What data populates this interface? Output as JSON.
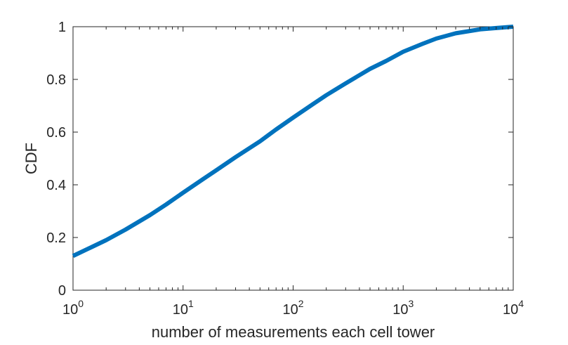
{
  "chart_data": {
    "type": "line",
    "title": "",
    "xlabel": "number of measurements each cell tower",
    "ylabel": "CDF",
    "xscale": "log",
    "xlim": [
      1,
      10000
    ],
    "ylim": [
      0,
      1
    ],
    "grid": false,
    "x_ticks": [
      {
        "base": "10",
        "exp": "0",
        "value": 1
      },
      {
        "base": "10",
        "exp": "1",
        "value": 10
      },
      {
        "base": "10",
        "exp": "2",
        "value": 100
      },
      {
        "base": "10",
        "exp": "3",
        "value": 1000
      },
      {
        "base": "10",
        "exp": "4",
        "value": 10000
      }
    ],
    "y_ticks": [
      "0",
      "0.2",
      "0.4",
      "0.6",
      "0.8",
      "1"
    ],
    "series": [
      {
        "color": "#0072bd",
        "x": [
          1,
          1.5,
          2,
          3,
          5,
          7,
          10,
          15,
          20,
          30,
          50,
          70,
          100,
          150,
          200,
          300,
          500,
          700,
          1000,
          1500,
          2000,
          3000,
          5000,
          7000,
          10000
        ],
        "y": [
          0.13,
          0.165,
          0.19,
          0.23,
          0.285,
          0.325,
          0.37,
          0.42,
          0.455,
          0.505,
          0.565,
          0.61,
          0.655,
          0.705,
          0.74,
          0.785,
          0.84,
          0.87,
          0.905,
          0.935,
          0.955,
          0.975,
          0.99,
          0.995,
          1.0
        ]
      }
    ]
  }
}
